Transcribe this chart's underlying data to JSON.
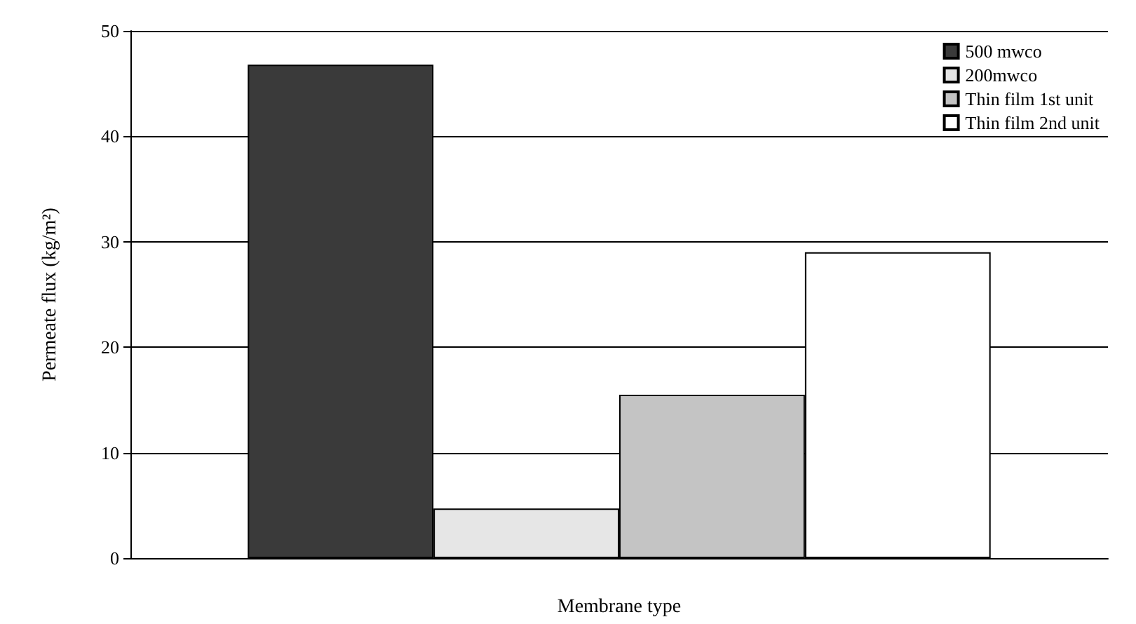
{
  "chart_data": {
    "type": "bar",
    "xlabel": "Membrane type",
    "ylabel": "Permeate flux (kg/m²)",
    "categories": [
      null
    ],
    "series": [
      {
        "name": "500 mwco",
        "color": "#3a3a3a",
        "values": [
          46.8
        ]
      },
      {
        "name": "200mwco",
        "color": "#e6e6e6",
        "values": [
          4.7
        ]
      },
      {
        "name": "Thin film 1st unit",
        "color": "#c4c4c4",
        "values": [
          15.5
        ]
      },
      {
        "name": "Thin film 2nd unit",
        "color": "#ffffff",
        "values": [
          29
        ]
      }
    ],
    "ylim": [
      0,
      50
    ],
    "yticks": [
      0,
      10,
      20,
      30,
      40,
      50
    ],
    "grid": "y",
    "legend": "top right"
  }
}
